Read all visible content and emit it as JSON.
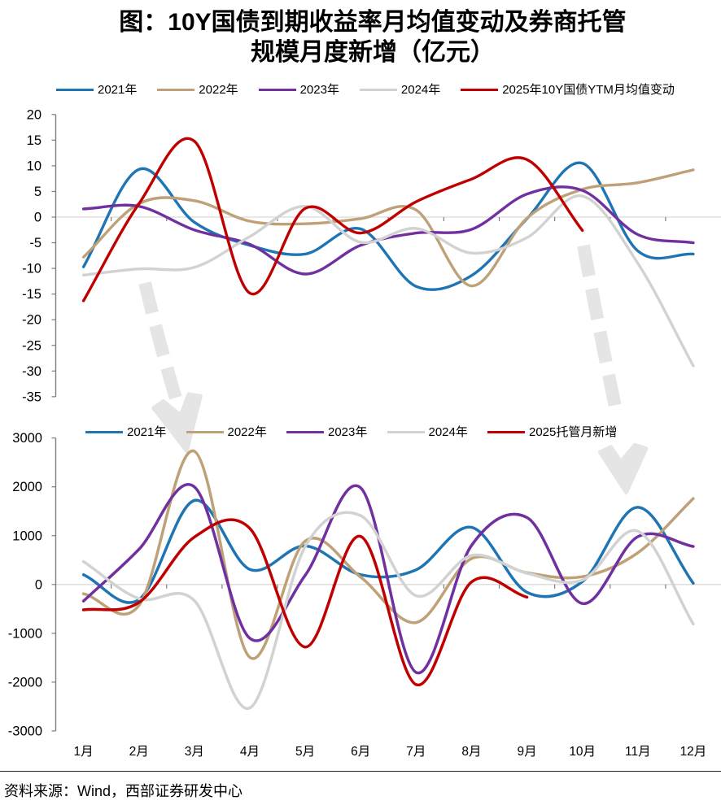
{
  "title": {
    "line1": "图：10Y国债到期收益率月均值变动及券商托管",
    "line2": "规模月度新增（亿元）"
  },
  "source_note": "资料来源：Wind，西部证券研发中心",
  "colors": {
    "y2021": "#1F75B4",
    "y2022": "#BFA178",
    "y2023": "#7030A0",
    "y2024": "#D2D2D2",
    "y2025": "#C00000",
    "zero_line": "#D9D9D9",
    "axis": "#7F7F7F",
    "arrow": "#E5E5E5",
    "text": "#000000"
  },
  "chart_data": [
    {
      "type": "line",
      "panel": "top",
      "categories": [
        "1月",
        "2月",
        "3月",
        "4月",
        "5月",
        "6月",
        "7月",
        "8月",
        "9月",
        "10月",
        "11月",
        "12月"
      ],
      "ylim": [
        -35,
        20
      ],
      "y_ticks": [
        20,
        15,
        10,
        5,
        0,
        -5,
        -10,
        -15,
        -20,
        -25,
        -30,
        -35
      ],
      "grid": "zero-line-only",
      "legend_position": "top",
      "series": [
        {
          "name": "2021年",
          "color": "#1F75B4",
          "values": [
            -9.7,
            9.3,
            -1.0,
            -5.5,
            -7.2,
            -2.3,
            -13.5,
            -11.4,
            -0.3,
            10.5,
            -6.6,
            -7.2
          ]
        },
        {
          "name": "2022年",
          "color": "#BFA178",
          "values": [
            -7.8,
            2.6,
            3.2,
            -0.8,
            -1.3,
            -0.3,
            1.4,
            -13.4,
            -0.2,
            5.4,
            6.7,
            9.2
          ]
        },
        {
          "name": "2023年",
          "color": "#7030A0",
          "values": [
            1.6,
            2.1,
            -2.5,
            -5.3,
            -11.1,
            -5.5,
            -3.1,
            -2.4,
            4.5,
            5.2,
            -3.4,
            -5.0
          ]
        },
        {
          "name": "2024年",
          "color": "#D2D2D2",
          "values": [
            -11.3,
            -10.1,
            -9.8,
            -3.8,
            2.1,
            -4.9,
            -2.2,
            -7.0,
            -4.0,
            4.1,
            -9.0,
            -29.0
          ]
        },
        {
          "name": "2025年10Y国债YTM月均值变动",
          "color": "#C00000",
          "values": [
            -16.3,
            2.6,
            14.8,
            -14.8,
            1.7,
            -3.1,
            3.0,
            7.4,
            11.2,
            -2.6
          ]
        }
      ]
    },
    {
      "type": "line",
      "panel": "bottom",
      "categories": [
        "1月",
        "2月",
        "3月",
        "4月",
        "5月",
        "6月",
        "7月",
        "8月",
        "9月",
        "10月",
        "11月",
        "12月"
      ],
      "ylim": [
        -3000,
        3000
      ],
      "y_ticks": [
        3000,
        2000,
        1000,
        0,
        -1000,
        -2000,
        -3000
      ],
      "grid": "zero-line-only",
      "legend_position": "top-inside",
      "series": [
        {
          "name": "2021年",
          "color": "#1F75B4",
          "values": [
            200,
            -310,
            1720,
            310,
            790,
            200,
            300,
            1170,
            -160,
            60,
            1580,
            25
          ]
        },
        {
          "name": "2022年",
          "color": "#BFA178",
          "values": [
            -190,
            -430,
            2730,
            -1490,
            890,
            150,
            -780,
            530,
            240,
            160,
            650,
            1760
          ]
        },
        {
          "name": "2023年",
          "color": "#7030A0",
          "values": [
            -340,
            720,
            2000,
            -1100,
            190,
            1980,
            -1800,
            800,
            1370,
            -390,
            980,
            780
          ]
        },
        {
          "name": "2024年",
          "color": "#D2D2D2",
          "values": [
            470,
            -290,
            -330,
            -2530,
            780,
            1410,
            -230,
            595,
            230,
            90,
            1090,
            -810
          ]
        },
        {
          "name": "2025托管月新增",
          "color": "#C00000",
          "values": [
            -520,
            -370,
            970,
            1150,
            -1280,
            985,
            -2050,
            50,
            -260
          ]
        }
      ]
    }
  ],
  "legend_top": [
    "2021年",
    "2022年",
    "2023年",
    "2024年",
    "2025年10Y国债YTM月均值变动"
  ],
  "legend_bottom": [
    "2021年",
    "2022年",
    "2023年",
    "2024年",
    "2025托管月新增"
  ]
}
